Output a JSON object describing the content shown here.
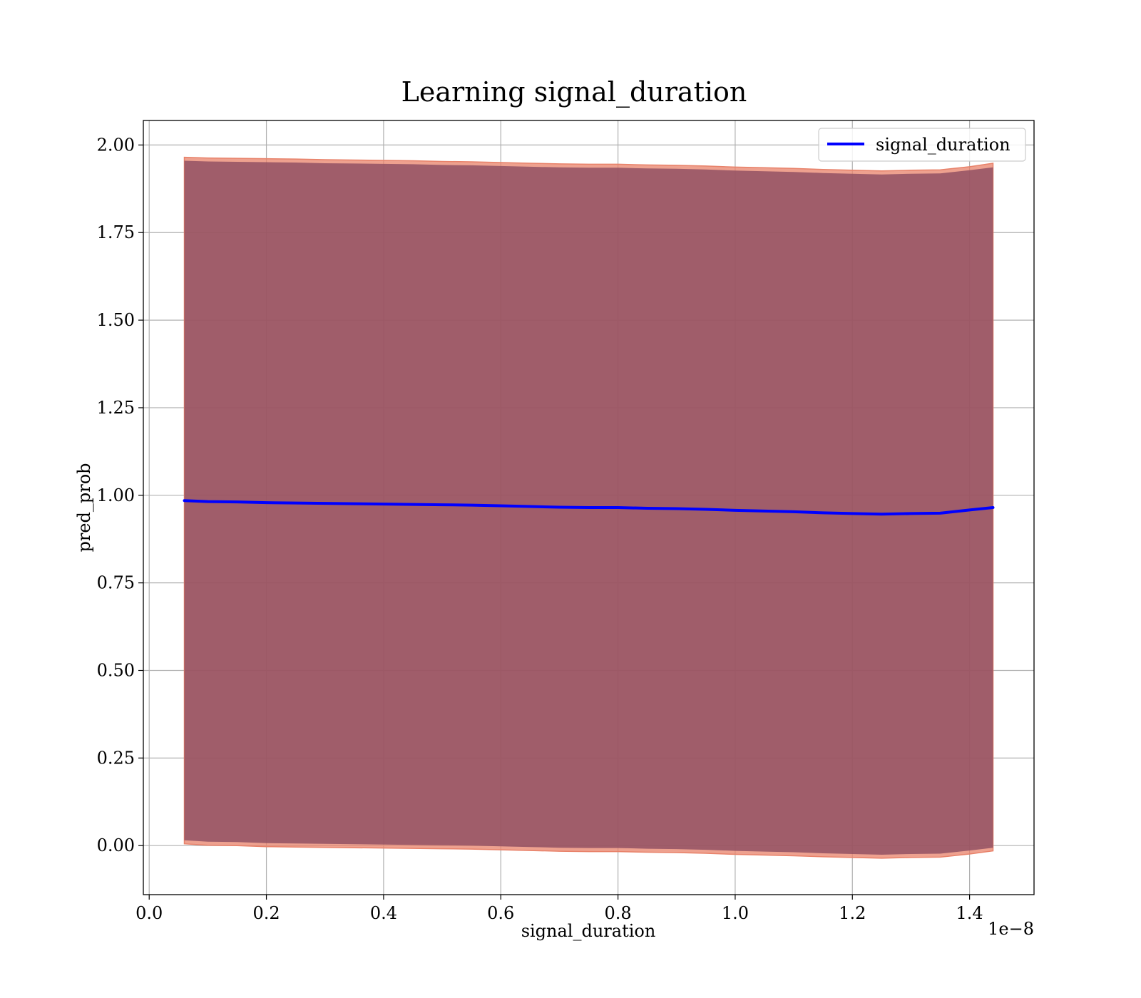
{
  "chart_data": {
    "type": "line",
    "title": "Learning signal_duration",
    "xlabel": "signal_duration",
    "ylabel": "pred_prob",
    "x_offset_text": "1e−8",
    "xlim": [
      -0.01,
      1.51
    ],
    "ylim": [
      -0.14,
      2.07
    ],
    "x_ticks": [
      0.0,
      0.2,
      0.4,
      0.6,
      0.8,
      1.0,
      1.2,
      1.4
    ],
    "x_tick_labels": [
      "0.0",
      "0.2",
      "0.4",
      "0.6",
      "0.8",
      "1.0",
      "1.2",
      "1.4"
    ],
    "y_ticks": [
      0.0,
      0.25,
      0.5,
      0.75,
      1.0,
      1.25,
      1.5,
      1.75,
      2.0
    ],
    "y_tick_labels": [
      "0.00",
      "0.25",
      "0.50",
      "0.75",
      "1.00",
      "1.25",
      "1.50",
      "1.75",
      "2.00"
    ],
    "grid": true,
    "legend_position": "top-right",
    "colors": {
      "line": "#0000ff",
      "band_outer": "#e8826a",
      "band_inner": "#8b4a60"
    },
    "series": [
      {
        "name": "signal_duration",
        "x": [
          0.06,
          0.1,
          0.15,
          0.2,
          0.25,
          0.3,
          0.35,
          0.4,
          0.45,
          0.5,
          0.55,
          0.6,
          0.65,
          0.7,
          0.75,
          0.8,
          0.85,
          0.9,
          0.95,
          1.0,
          1.05,
          1.1,
          1.15,
          1.2,
          1.25,
          1.3,
          1.35,
          1.4,
          1.44
        ],
        "y": [
          0.985,
          0.982,
          0.981,
          0.979,
          0.978,
          0.977,
          0.976,
          0.975,
          0.974,
          0.973,
          0.972,
          0.97,
          0.968,
          0.966,
          0.965,
          0.965,
          0.963,
          0.962,
          0.96,
          0.957,
          0.955,
          0.953,
          0.95,
          0.948,
          0.946,
          0.948,
          0.949,
          0.958,
          0.965
        ]
      }
    ],
    "band_outer": {
      "upper": [
        1.965,
        1.963,
        1.962,
        1.961,
        1.96,
        1.958,
        1.957,
        1.956,
        1.955,
        1.953,
        1.952,
        1.95,
        1.948,
        1.946,
        1.945,
        1.945,
        1.943,
        1.942,
        1.94,
        1.937,
        1.935,
        1.933,
        1.93,
        1.928,
        1.926,
        1.928,
        1.929,
        1.938,
        1.948
      ],
      "lower": [
        0.005,
        0.001,
        0.0,
        -0.003,
        -0.004,
        -0.005,
        -0.006,
        -0.007,
        -0.008,
        -0.009,
        -0.01,
        -0.012,
        -0.014,
        -0.016,
        -0.017,
        -0.017,
        -0.019,
        -0.02,
        -0.022,
        -0.025,
        -0.027,
        -0.029,
        -0.032,
        -0.034,
        -0.036,
        -0.034,
        -0.033,
        -0.024,
        -0.015
      ]
    },
    "band_inner": {
      "upper": [
        1.955,
        1.953,
        1.952,
        1.951,
        1.95,
        1.948,
        1.947,
        1.946,
        1.945,
        1.943,
        1.942,
        1.94,
        1.938,
        1.936,
        1.935,
        1.935,
        1.933,
        1.932,
        1.93,
        1.927,
        1.925,
        1.923,
        1.92,
        1.918,
        1.916,
        1.918,
        1.919,
        1.928,
        1.936
      ],
      "lower": [
        0.015,
        0.011,
        0.01,
        0.007,
        0.006,
        0.005,
        0.004,
        0.003,
        0.002,
        0.001,
        0.0,
        -0.002,
        -0.004,
        -0.006,
        -0.007,
        -0.007,
        -0.009,
        -0.01,
        -0.012,
        -0.015,
        -0.017,
        -0.019,
        -0.022,
        -0.024,
        -0.026,
        -0.024,
        -0.023,
        -0.014,
        -0.006
      ]
    }
  }
}
